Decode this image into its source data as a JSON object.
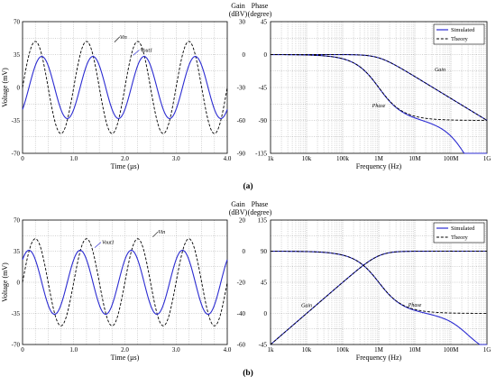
{
  "colors": {
    "simulated": "#2b2bd1",
    "theory": "#000000",
    "grid": "#9a9a9a"
  },
  "captions": {
    "a": "(a)",
    "b": "(b)"
  },
  "chart_data": [
    {
      "id": "a-time",
      "type": "line",
      "xlabel": "Time (µs)",
      "ylabel": "Voltage (mV)",
      "xlim": [
        0,
        4
      ],
      "ylim": [
        -70,
        70
      ],
      "xticks": [
        "0",
        "1.0",
        "2.0",
        "3.0",
        "4.0"
      ],
      "yticks": [
        "70",
        "35",
        "0",
        "-35",
        "-70"
      ],
      "grid": true,
      "series": [
        {
          "name": "Vin",
          "style": "dashed",
          "color": "#000000",
          "amplitude_mV": 49,
          "freq_MHz": 1,
          "phase_deg": 0
        },
        {
          "name": "Vout1",
          "style": "solid",
          "color": "#2b2bd1",
          "amplitude_mV": 33,
          "freq_MHz": 1,
          "phase_deg": -45
        }
      ],
      "annotations": [
        {
          "text": "Vin",
          "x": 1.9,
          "y": 52
        },
        {
          "text": "Vout1",
          "x": 2.3,
          "y": 38
        }
      ]
    },
    {
      "id": "a-bode",
      "type": "line",
      "xlabel": "Frequency (Hz)",
      "ylabel_gain": "Gain (dBV)",
      "ylabel_phase": "Phase (degree)",
      "xscale": "log",
      "xlim": [
        1000,
        1000000000
      ],
      "xticks": [
        "1k",
        "10k",
        "100k",
        "1M",
        "10M",
        "100M",
        "1G"
      ],
      "gain_ticks": [
        "30",
        "0",
        "-30",
        "-60",
        "-90"
      ],
      "phase_ticks": [
        "45",
        "0",
        "-45",
        "-90",
        "-135"
      ],
      "gain_lim": [
        -90,
        30
      ],
      "phase_lim": [
        -135,
        45
      ],
      "grid": true,
      "legend": {
        "position": "top-right",
        "entries": [
          "Simulated",
          "Theory"
        ]
      },
      "series": [
        {
          "name": "Gain (Simulated)",
          "kind": "gain",
          "type": "lowpass",
          "fc_Hz": 1000000,
          "color": "#2b2bd1"
        },
        {
          "name": "Phase (Simulated)",
          "kind": "phase",
          "type": "lowpass",
          "fc_Hz": 1000000,
          "color": "#2b2bd1"
        }
      ],
      "annotations": [
        {
          "text": "Gain",
          "x": 50000000,
          "axis": "gain",
          "y": -15
        },
        {
          "text": "Phase",
          "x": 1000000,
          "axis": "phase",
          "y": -72
        }
      ]
    },
    {
      "id": "b-time",
      "type": "line",
      "xlabel": "Time (µs)",
      "ylabel": "Voltage (mV)",
      "xlim": [
        0,
        4
      ],
      "ylim": [
        -70,
        70
      ],
      "xticks": [
        "0",
        "1.0",
        "2.0",
        "3.0",
        "4.0"
      ],
      "yticks": [
        "70",
        "35",
        "0",
        "-35",
        "-70"
      ],
      "grid": true,
      "series": [
        {
          "name": "Vin",
          "style": "dashed",
          "color": "#000000",
          "amplitude_mV": 49,
          "freq_MHz": 1,
          "phase_deg": 0
        },
        {
          "name": "Vout1",
          "style": "solid",
          "color": "#2b2bd1",
          "amplitude_mV": 36,
          "freq_MHz": 1,
          "phase_deg": 45
        }
      ],
      "annotations": [
        {
          "text": "Vin",
          "x": 2.65,
          "y": 55
        },
        {
          "text": "Vout1",
          "x": 1.55,
          "y": 43
        }
      ]
    },
    {
      "id": "b-bode",
      "type": "line",
      "xlabel": "Frequency (Hz)",
      "ylabel_gain": "Gain (dBV)",
      "ylabel_phase": "Phase (degree)",
      "xscale": "log",
      "xlim": [
        1000,
        1000000000
      ],
      "xticks": [
        "1k",
        "10k",
        "100k",
        "1M",
        "10M",
        "100M",
        "1G"
      ],
      "gain_ticks": [
        "20",
        "0",
        "-20",
        "-40",
        "-60"
      ],
      "phase_ticks": [
        "135",
        "90",
        "45",
        "0",
        "-45"
      ],
      "gain_lim": [
        -60,
        20
      ],
      "phase_lim": [
        -45,
        135
      ],
      "grid": true,
      "legend": {
        "position": "top-right",
        "entries": [
          "Simulated",
          "Theory"
        ]
      },
      "series": [
        {
          "name": "Gain (Simulated)",
          "kind": "gain",
          "type": "highpass",
          "fc_Hz": 1000000,
          "color": "#2b2bd1"
        },
        {
          "name": "Phase (Simulated)",
          "kind": "phase",
          "type": "highpass",
          "fc_Hz": 1000000,
          "color": "#2b2bd1"
        }
      ],
      "annotations": [
        {
          "text": "Gain",
          "x": 10000,
          "axis": "gain",
          "y": -36
        },
        {
          "text": "Phase",
          "x": 10000000,
          "axis": "phase",
          "y": 10
        }
      ]
    }
  ]
}
